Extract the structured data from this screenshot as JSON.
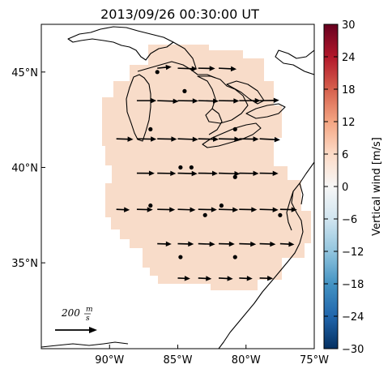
{
  "title": "2013/09/26 00:30:00 UT",
  "map": {
    "lon_range": [
      -95,
      -75
    ],
    "lat_range": [
      30.5,
      47.5
    ],
    "lon_ticks": [
      {
        "value": -90,
        "label": "90°W"
      },
      {
        "value": -85,
        "label": "85°W"
      },
      {
        "value": -80,
        "label": "80°W"
      },
      {
        "value": -75,
        "label": "75°W"
      }
    ],
    "lat_ticks": [
      {
        "value": 45,
        "label": "45°N"
      },
      {
        "value": 40,
        "label": "40°N"
      },
      {
        "value": 35,
        "label": "35°N"
      }
    ],
    "field_color": "#f8dcc9",
    "arrow_color": "#000000",
    "reference_vector": {
      "magnitude": 200,
      "label": "200",
      "unit_num": "m",
      "unit_den": "s"
    }
  },
  "colorbar": {
    "label": "Vertical wind [m/s]",
    "min": -30,
    "max": 30,
    "ticks": [
      {
        "value": 30,
        "label": "30"
      },
      {
        "value": 24,
        "label": "24"
      },
      {
        "value": 18,
        "label": "18"
      },
      {
        "value": 12,
        "label": "12"
      },
      {
        "value": 6,
        "label": "6"
      },
      {
        "value": 0,
        "label": "0"
      },
      {
        "value": -6,
        "label": "−6"
      },
      {
        "value": -12,
        "label": "−12"
      },
      {
        "value": -18,
        "label": "−18"
      },
      {
        "value": -24,
        "label": "−24"
      },
      {
        "value": -30,
        "label": "−30"
      }
    ],
    "colors": [
      "#053061",
      "#2166ac",
      "#4393c3",
      "#92c5de",
      "#d1e5f0",
      "#f7f7f7",
      "#fddbc7",
      "#f4a582",
      "#d6604d",
      "#b2182b",
      "#67001f"
    ]
  },
  "stations": [
    {
      "lon": -86.5,
      "lat": 45.0
    },
    {
      "lon": -84.5,
      "lat": 44.0
    },
    {
      "lon": -87.0,
      "lat": 42.0
    },
    {
      "lon": -80.8,
      "lat": 42.0
    },
    {
      "lon": -84.8,
      "lat": 40.0
    },
    {
      "lon": -84.0,
      "lat": 40.0
    },
    {
      "lon": -80.8,
      "lat": 39.5
    },
    {
      "lon": -87.0,
      "lat": 38.0
    },
    {
      "lon": -81.8,
      "lat": 38.0
    },
    {
      "lon": -83.0,
      "lat": 37.5
    },
    {
      "lon": -77.5,
      "lat": 37.5
    },
    {
      "lon": -84.8,
      "lat": 35.3
    },
    {
      "lon": -80.8,
      "lat": 35.3
    }
  ],
  "vectors": [
    {
      "lon": -86.5,
      "lat": 45.2,
      "u": 80,
      "v": 8
    },
    {
      "lon": -85.0,
      "lat": 45.2,
      "u": 110,
      "v": -4
    },
    {
      "lon": -83.5,
      "lat": 45.2,
      "u": 95,
      "v": -2
    },
    {
      "lon": -82.0,
      "lat": 45.2,
      "u": 100,
      "v": -5
    },
    {
      "lon": -88.0,
      "lat": 43.5,
      "u": 110,
      "v": 0
    },
    {
      "lon": -86.5,
      "lat": 43.5,
      "u": 120,
      "v": -4
    },
    {
      "lon": -85.0,
      "lat": 43.5,
      "u": 115,
      "v": -2
    },
    {
      "lon": -83.5,
      "lat": 43.5,
      "u": 115,
      "v": -3
    },
    {
      "lon": -82.0,
      "lat": 43.5,
      "u": 115,
      "v": -2
    },
    {
      "lon": -80.5,
      "lat": 43.5,
      "u": 120,
      "v": 0
    },
    {
      "lon": -79.0,
      "lat": 43.5,
      "u": 110,
      "v": 2
    },
    {
      "lon": -89.5,
      "lat": 41.5,
      "u": 95,
      "v": -3
    },
    {
      "lon": -88.0,
      "lat": 41.5,
      "u": 110,
      "v": -2
    },
    {
      "lon": -86.5,
      "lat": 41.5,
      "u": 110,
      "v": -2
    },
    {
      "lon": -85.0,
      "lat": 41.5,
      "u": 115,
      "v": -4
    },
    {
      "lon": -83.5,
      "lat": 41.5,
      "u": 115,
      "v": -3
    },
    {
      "lon": -82.0,
      "lat": 41.5,
      "u": 120,
      "v": -3
    },
    {
      "lon": -80.5,
      "lat": 41.5,
      "u": 110,
      "v": -2
    },
    {
      "lon": -79.0,
      "lat": 41.5,
      "u": 115,
      "v": -6
    },
    {
      "lon": -88.0,
      "lat": 39.7,
      "u": 100,
      "v": -1
    },
    {
      "lon": -86.5,
      "lat": 39.7,
      "u": 105,
      "v": -2
    },
    {
      "lon": -85.0,
      "lat": 39.7,
      "u": 110,
      "v": -3
    },
    {
      "lon": -83.5,
      "lat": 39.7,
      "u": 110,
      "v": -2
    },
    {
      "lon": -82.0,
      "lat": 39.7,
      "u": 120,
      "v": -4
    },
    {
      "lon": -80.5,
      "lat": 39.7,
      "u": 110,
      "v": -2
    },
    {
      "lon": -79.0,
      "lat": 39.7,
      "u": 105,
      "v": -2
    },
    {
      "lon": -89.5,
      "lat": 37.8,
      "u": 75,
      "v": -3
    },
    {
      "lon": -88.0,
      "lat": 37.8,
      "u": 90,
      "v": -2
    },
    {
      "lon": -86.5,
      "lat": 37.8,
      "u": 100,
      "v": -2
    },
    {
      "lon": -85.0,
      "lat": 37.8,
      "u": 100,
      "v": -3
    },
    {
      "lon": -83.5,
      "lat": 37.8,
      "u": 105,
      "v": -2
    },
    {
      "lon": -82.0,
      "lat": 37.8,
      "u": 110,
      "v": -3
    },
    {
      "lon": -80.5,
      "lat": 37.8,
      "u": 100,
      "v": -2
    },
    {
      "lon": -79.0,
      "lat": 37.8,
      "u": 105,
      "v": -3
    },
    {
      "lon": -77.5,
      "lat": 37.8,
      "u": 95,
      "v": -2
    },
    {
      "lon": -86.5,
      "lat": 36.0,
      "u": 80,
      "v": -2
    },
    {
      "lon": -85.0,
      "lat": 36.0,
      "u": 90,
      "v": -2
    },
    {
      "lon": -83.5,
      "lat": 36.0,
      "u": 95,
      "v": -3
    },
    {
      "lon": -82.0,
      "lat": 36.0,
      "u": 90,
      "v": -2
    },
    {
      "lon": -80.5,
      "lat": 36.0,
      "u": 95,
      "v": -3
    },
    {
      "lon": -79.0,
      "lat": 36.0,
      "u": 90,
      "v": -3
    },
    {
      "lon": -77.5,
      "lat": 36.0,
      "u": 80,
      "v": -4
    },
    {
      "lon": -85.0,
      "lat": 34.2,
      "u": 70,
      "v": -3
    },
    {
      "lon": -83.5,
      "lat": 34.2,
      "u": 75,
      "v": -4
    },
    {
      "lon": -82.0,
      "lat": 34.2,
      "u": 80,
      "v": -4
    },
    {
      "lon": -80.5,
      "lat": 34.2,
      "u": 75,
      "v": -3
    },
    {
      "lon": -79.0,
      "lat": 34.2,
      "u": 75,
      "v": -2
    }
  ]
}
